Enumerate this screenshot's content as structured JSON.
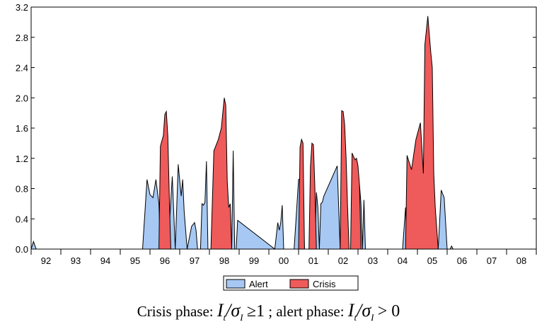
{
  "chart_data": {
    "type": "area",
    "ylim": [
      0,
      3.2
    ],
    "y_ticks": [
      0.0,
      0.4,
      0.8,
      1.2,
      1.6,
      2.0,
      2.4,
      2.8,
      3.2
    ],
    "y_tick_labels": [
      "0.0",
      "0.4",
      "0.8",
      "1.2",
      "1.6",
      "2.0",
      "2.4",
      "2.8",
      "3.2"
    ],
    "xlim": [
      1992.0,
      2009.0
    ],
    "x_tick_labels": [
      "92",
      "93",
      "94",
      "95",
      "96",
      "97",
      "98",
      "99",
      "00",
      "01",
      "02",
      "03",
      "04",
      "05",
      "06",
      "07",
      "08"
    ],
    "x_tick_positions": [
      1992.5,
      1993.5,
      1994.5,
      1995.5,
      1996.5,
      1997.5,
      1998.5,
      1999.5,
      2000.5,
      2001.5,
      2002.5,
      2003.5,
      2004.5,
      2005.5,
      2006.5,
      2007.5,
      2008.5
    ],
    "grid": false,
    "legend": "bottom-center",
    "series": [
      {
        "name": "Alert",
        "color": "#a6c8f3",
        "x": [
          1992.0,
          1992.08,
          1992.17,
          1992.25,
          1995.75,
          1995.9,
          1996.0,
          1996.1,
          1996.2,
          1996.3,
          1996.35,
          1996.45,
          1996.5,
          1996.55,
          1996.6,
          1996.65,
          1996.75,
          1996.85,
          1996.95,
          1997.05,
          1997.1,
          1997.15,
          1997.25,
          1997.4,
          1997.5,
          1997.55,
          1997.6,
          1997.65,
          1997.7,
          1997.75,
          1997.8,
          1997.85,
          1997.9,
          1997.95,
          1998.3,
          1998.4,
          1998.5,
          1998.6,
          1998.7,
          1998.75,
          1998.8,
          1998.85,
          1998.9,
          1998.95,
          2000.2,
          2000.3,
          2000.35,
          2000.4,
          2000.45,
          2000.5,
          2000.55,
          2000.6,
          2000.65,
          2000.7,
          2000.8,
          2000.85,
          2001.0,
          2001.05,
          2001.1,
          2001.15,
          2001.2,
          2001.25,
          2001.3,
          2001.35,
          2001.4,
          2001.45,
          2001.5,
          2001.55,
          2001.6,
          2001.65,
          2001.7,
          2001.75,
          2001.8,
          2001.85,
          2002.3,
          2002.4,
          2002.45,
          2002.5,
          2002.55,
          2002.6,
          2002.65,
          2002.7,
          2002.75,
          2002.85,
          2002.9,
          2002.95,
          2003.0,
          2003.05,
          2003.1,
          2003.15,
          2003.2,
          2003.25,
          2003.3,
          2004.5,
          2004.6,
          2004.65,
          2005.7,
          2005.8,
          2005.9,
          2006.0,
          2006.1,
          2006.15,
          2006.2,
          2006.3
        ],
        "y": [
          0,
          0.1,
          0,
          0,
          0,
          0.92,
          0.72,
          0.68,
          0.92,
          0.6,
          0.0,
          0.0,
          0.0,
          0.0,
          0.0,
          0.3,
          0.96,
          0.0,
          1.12,
          0.7,
          0.92,
          0.5,
          0.0,
          0.3,
          0.35,
          0.25,
          0.0,
          0.0,
          0.0,
          0.6,
          0.58,
          0.62,
          1.16,
          0.0,
          0.0,
          0.0,
          0.0,
          0.0,
          0.0,
          0.0,
          1.3,
          0.0,
          0.0,
          0.38,
          0.0,
          0.35,
          0.25,
          0.35,
          0.58,
          0.0,
          0.0,
          0.0,
          0.0,
          0.0,
          0.0,
          0.0,
          0.92,
          0.93,
          0.93,
          0.7,
          0.0,
          0.0,
          0.0,
          0.0,
          0.0,
          0.92,
          0.0,
          0.0,
          0.75,
          0.55,
          0.0,
          0.6,
          0.62,
          0.7,
          1.1,
          0.0,
          0.0,
          0.0,
          0.0,
          0.0,
          0.0,
          0.0,
          0.0,
          0.0,
          0.0,
          0.0,
          0.0,
          0.85,
          0.6,
          0.0,
          0.65,
          0.0,
          0.0,
          0.0,
          0.55,
          0.0,
          0.0,
          0.78,
          0.68,
          0.0,
          0.0,
          0.04,
          0.0,
          0.0
        ]
      },
      {
        "name": "Crisis",
        "color": "#ef5a5a",
        "x": [
          1996.3,
          1996.35,
          1996.45,
          1996.5,
          1996.55,
          1996.6,
          1996.65,
          1996.7,
          1998.05,
          1998.15,
          1998.25,
          1998.3,
          1998.4,
          1998.5,
          1998.55,
          1998.6,
          1998.65,
          1998.7,
          1998.75,
          2001.0,
          2001.05,
          2001.1,
          2001.15,
          2001.2,
          2001.35,
          2001.4,
          2001.45,
          2001.5,
          2001.55,
          2001.6,
          2002.4,
          2002.45,
          2002.5,
          2002.55,
          2002.6,
          2002.65,
          2002.7,
          2002.75,
          2002.8,
          2002.9,
          2002.95,
          2003.0,
          2003.05,
          2003.1,
          2004.6,
          2004.65,
          2004.8,
          2004.95,
          2005.1,
          2005.2,
          2005.25,
          2005.35,
          2005.45,
          2005.5,
          2005.55,
          2005.6,
          2005.7
        ],
        "y": [
          0,
          1.36,
          1.5,
          1.78,
          1.82,
          1.5,
          0.7,
          0,
          0,
          1.3,
          1.4,
          1.45,
          1.6,
          2.0,
          1.9,
          0.9,
          0.55,
          0.6,
          0,
          0,
          1.35,
          1.45,
          1.4,
          0,
          0,
          1.1,
          1.4,
          1.38,
          0.8,
          0,
          0,
          1.83,
          1.82,
          1.65,
          1.2,
          0.55,
          0,
          0,
          1.27,
          1.18,
          1.2,
          1.1,
          0.85,
          0,
          0,
          1.24,
          1.05,
          1.45,
          1.67,
          1.0,
          2.7,
          3.08,
          2.6,
          2.4,
          1.0,
          0.55,
          0
        ]
      }
    ]
  },
  "caption": {
    "crisis_label": "Crisis phase:",
    "crisis_rel": "≥1",
    "sep": ";",
    "alert_label": "alert phase:",
    "alert_rel": "> 0",
    "var_I": "I",
    "sub_t": "t",
    "sigma": "σ",
    "sub_I": "I",
    "slash": "/"
  }
}
